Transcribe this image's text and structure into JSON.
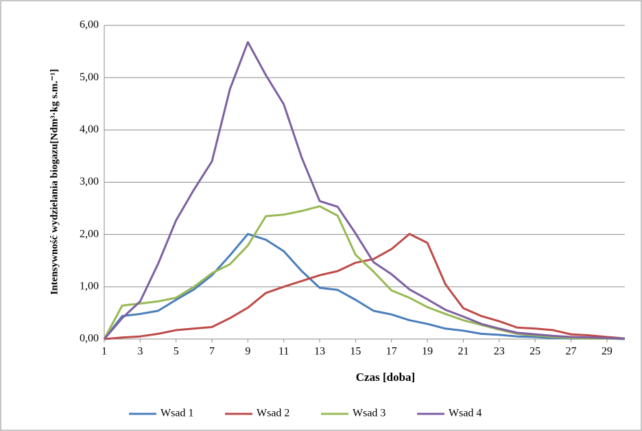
{
  "chart_data": {
    "type": "line",
    "y_label": "Intensywność wydzielania biogazu[Ndm³·kg s.m.⁻¹]",
    "x_label": "Czas [doba]",
    "x": [
      1,
      2,
      3,
      4,
      5,
      6,
      7,
      8,
      9,
      10,
      11,
      12,
      13,
      14,
      15,
      16,
      17,
      18,
      19,
      20,
      21,
      22,
      23,
      24,
      25,
      26,
      27,
      28,
      29,
      30
    ],
    "xlim": [
      1,
      30
    ],
    "xticks": [
      1,
      3,
      5,
      7,
      9,
      11,
      13,
      15,
      17,
      19,
      21,
      23,
      25,
      27,
      29
    ],
    "ylim": [
      0,
      6
    ],
    "yticks": [
      {
        "value": 0,
        "label": "0,00"
      },
      {
        "value": 1,
        "label": "1,00"
      },
      {
        "value": 2,
        "label": "2,00"
      },
      {
        "value": 3,
        "label": "3,00"
      },
      {
        "value": 4,
        "label": "4,00"
      },
      {
        "value": 5,
        "label": "5,00"
      },
      {
        "value": 6,
        "label": "6,00"
      }
    ],
    "grid": true,
    "legend": "bottom",
    "series": [
      {
        "name": "Wsad 1",
        "color": "#4a7ebb",
        "values": [
          0,
          0.44,
          0.48,
          0.54,
          0.75,
          0.95,
          1.22,
          1.6,
          2.01,
          1.9,
          1.68,
          1.3,
          0.98,
          0.94,
          0.75,
          0.54,
          0.47,
          0.36,
          0.29,
          0.2,
          0.16,
          0.1,
          0.08,
          0.05,
          0.04,
          0.02,
          0.01,
          0.01,
          0.01,
          0
        ]
      },
      {
        "name": "Wsad 2",
        "color": "#be4b48",
        "values": [
          0,
          0.03,
          0.05,
          0.1,
          0.17,
          0.2,
          0.23,
          0.4,
          0.6,
          0.88,
          1.0,
          1.11,
          1.22,
          1.3,
          1.46,
          1.53,
          1.72,
          2.01,
          1.84,
          1.05,
          0.59,
          0.44,
          0.34,
          0.22,
          0.2,
          0.17,
          0.09,
          0.07,
          0.04,
          0.01
        ]
      },
      {
        "name": "Wsad 3",
        "color": "#98b954",
        "values": [
          0,
          0.64,
          0.68,
          0.72,
          0.79,
          1.0,
          1.26,
          1.43,
          1.79,
          2.35,
          2.38,
          2.45,
          2.54,
          2.36,
          1.61,
          1.29,
          0.93,
          0.79,
          0.61,
          0.48,
          0.36,
          0.27,
          0.18,
          0.1,
          0.07,
          0.04,
          0.02,
          0.01,
          0.01,
          0.01
        ]
      },
      {
        "name": "Wsad 4",
        "color": "#7d60a0",
        "values": [
          0,
          0.4,
          0.72,
          1.44,
          2.27,
          2.86,
          3.4,
          4.78,
          5.68,
          5.05,
          4.49,
          3.47,
          2.64,
          2.53,
          2.02,
          1.47,
          1.24,
          0.95,
          0.76,
          0.56,
          0.43,
          0.29,
          0.2,
          0.12,
          0.09,
          0.06,
          0.04,
          0.03,
          0.02,
          0.01
        ]
      }
    ]
  }
}
